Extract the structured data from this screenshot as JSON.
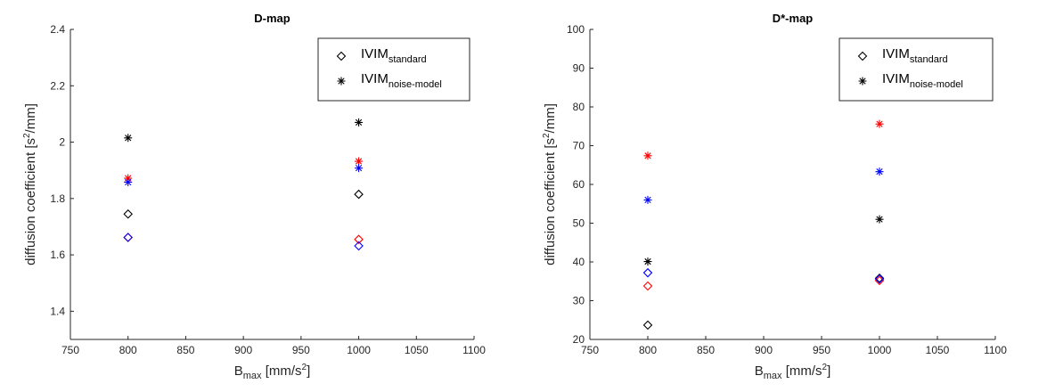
{
  "chart_data": [
    {
      "type": "scatter",
      "title": "D-map",
      "xlabel": {
        "main": "B",
        "sub": "max",
        "pre": " [mm/s",
        "sup": "2",
        "post": "]"
      },
      "ylabel": {
        "pre": "diffusion coefficient [s",
        "sup": "2",
        "post": "/mm]"
      },
      "xlim": [
        750,
        1100
      ],
      "ylim": [
        1.3,
        2.4
      ],
      "xticks": [
        "750",
        "800",
        "850",
        "900",
        "950",
        "1000",
        "1050",
        "1100"
      ],
      "yticks": [
        "1.4",
        "1.6",
        "1.8",
        "2",
        "2.2",
        "2.4"
      ],
      "legend_position": "top-right",
      "legend": [
        {
          "marker": "diamond",
          "main": "IVIM",
          "sub": "standard"
        },
        {
          "marker": "asterisk",
          "main": "IVIM",
          "sub": "noise-model"
        }
      ],
      "points": [
        {
          "x": 800,
          "y": 1.745,
          "marker": "diamond",
          "color": "#000000"
        },
        {
          "x": 800,
          "y": 1.662,
          "marker": "diamond",
          "color": "#ff0000"
        },
        {
          "x": 800,
          "y": 1.662,
          "marker": "diamond",
          "color": "#0000ff"
        },
        {
          "x": 800,
          "y": 2.015,
          "marker": "asterisk",
          "color": "#000000"
        },
        {
          "x": 800,
          "y": 1.872,
          "marker": "asterisk",
          "color": "#ff0000"
        },
        {
          "x": 800,
          "y": 1.858,
          "marker": "asterisk",
          "color": "#0000ff"
        },
        {
          "x": 1000,
          "y": 1.815,
          "marker": "diamond",
          "color": "#000000"
        },
        {
          "x": 1000,
          "y": 1.655,
          "marker": "diamond",
          "color": "#ff0000"
        },
        {
          "x": 1000,
          "y": 1.632,
          "marker": "diamond",
          "color": "#0000ff"
        },
        {
          "x": 1000,
          "y": 2.07,
          "marker": "asterisk",
          "color": "#000000"
        },
        {
          "x": 1000,
          "y": 1.932,
          "marker": "asterisk",
          "color": "#ff0000"
        },
        {
          "x": 1000,
          "y": 1.908,
          "marker": "asterisk",
          "color": "#0000ff"
        }
      ]
    },
    {
      "type": "scatter",
      "title": "D*-map",
      "xlabel": {
        "main": "B",
        "sub": "max",
        "pre": " [mm/s",
        "sup": "2",
        "post": "]"
      },
      "ylabel": {
        "pre": "diffusion coefficient [s",
        "sup": "2",
        "post": "/mm]"
      },
      "xlim": [
        750,
        1100
      ],
      "ylim": [
        20,
        100
      ],
      "xticks": [
        "750",
        "800",
        "850",
        "900",
        "950",
        "1000",
        "1050",
        "1100"
      ],
      "yticks": [
        "20",
        "30",
        "40",
        "50",
        "60",
        "70",
        "80",
        "90",
        "100"
      ],
      "legend_position": "top-right",
      "legend": [
        {
          "marker": "diamond",
          "main": "IVIM",
          "sub": "standard"
        },
        {
          "marker": "asterisk",
          "main": "IVIM",
          "sub": "noise-model"
        }
      ],
      "points": [
        {
          "x": 800,
          "y": 23.7,
          "marker": "diamond",
          "color": "#000000"
        },
        {
          "x": 800,
          "y": 33.8,
          "marker": "diamond",
          "color": "#ff0000"
        },
        {
          "x": 800,
          "y": 37.2,
          "marker": "diamond",
          "color": "#0000ff"
        },
        {
          "x": 800,
          "y": 40.1,
          "marker": "asterisk",
          "color": "#000000"
        },
        {
          "x": 800,
          "y": 67.4,
          "marker": "asterisk",
          "color": "#ff0000"
        },
        {
          "x": 800,
          "y": 56.0,
          "marker": "asterisk",
          "color": "#0000ff"
        },
        {
          "x": 1000,
          "y": 35.8,
          "marker": "diamond",
          "color": "#000000"
        },
        {
          "x": 1000,
          "y": 35.2,
          "marker": "diamond",
          "color": "#ff0000"
        },
        {
          "x": 1000,
          "y": 35.6,
          "marker": "diamond",
          "color": "#0000ff"
        },
        {
          "x": 1000,
          "y": 51.0,
          "marker": "asterisk",
          "color": "#000000"
        },
        {
          "x": 1000,
          "y": 75.6,
          "marker": "asterisk",
          "color": "#ff0000"
        },
        {
          "x": 1000,
          "y": 63.3,
          "marker": "asterisk",
          "color": "#0000ff"
        }
      ]
    }
  ]
}
